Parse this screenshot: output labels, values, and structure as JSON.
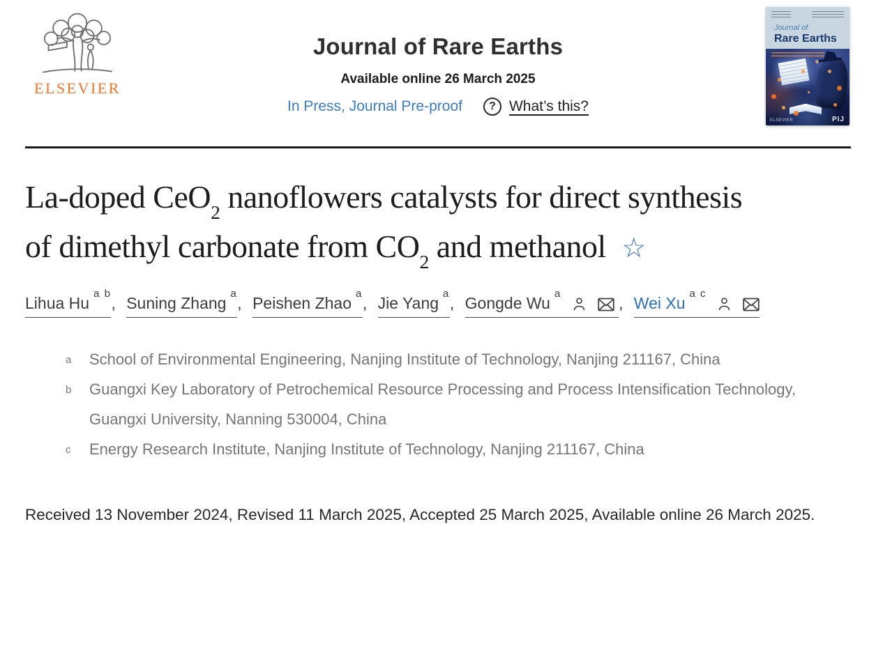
{
  "header": {
    "publisher_name": "ELSEVIER",
    "journal_title": "Journal of Rare Earths",
    "available_online": "Available online 26 March 2025",
    "in_press_link": "In Press, Journal Pre-proof",
    "whats_this": "What’s this?",
    "help_icon_glyph": "?",
    "cover": {
      "line1": "Journal of",
      "line2": "Rare Earths",
      "badge": "PIJ",
      "publisher": "ELSEVIER"
    }
  },
  "article": {
    "title_segments": [
      {
        "text": "La-doped CeO"
      },
      {
        "sub": "2"
      },
      {
        "text": " nanoflowers catalysts for direct synthesis of dimethyl carbonate from CO"
      },
      {
        "sub": "2"
      },
      {
        "text": " and methanol"
      }
    ],
    "title_star": "☆"
  },
  "authors": {
    "separator": ", ",
    "list": [
      {
        "name": "Lihua Hu",
        "sup": "a b",
        "corresponding": false,
        "highlighted": false
      },
      {
        "name": "Suning Zhang",
        "sup": "a",
        "corresponding": false,
        "highlighted": false
      },
      {
        "name": "Peishen Zhao",
        "sup": "a",
        "corresponding": false,
        "highlighted": false
      },
      {
        "name": "Jie Yang",
        "sup": "a",
        "corresponding": false,
        "highlighted": false
      },
      {
        "name": "Gongde Wu",
        "sup": "a",
        "corresponding": true,
        "highlighted": false
      },
      {
        "name": "Wei Xu",
        "sup": "a c",
        "corresponding": true,
        "highlighted": true
      }
    ]
  },
  "affiliations": [
    {
      "label": "a",
      "text": "School of Environmental Engineering, Nanjing Institute of Technology, Nanjing 211167, China"
    },
    {
      "label": "b",
      "text": "Guangxi Key Laboratory of Petrochemical Resource Processing and Process Intensification Technology, Guangxi University, Nanning 530004, China"
    },
    {
      "label": "c",
      "text": "Energy Research Institute, Nanjing Institute of Technology, Nanjing 211167, China"
    }
  ],
  "dates_line": "Received 13 November 2024, Revised 11 March 2025, Accepted 25 March 2025, Available online 26 March 2025.",
  "colors": {
    "link_blue": "#3e7dba",
    "highlighted_author_blue": "#2f6fad",
    "star_blue": "#3b72b0",
    "elsevier_orange": "#e8762d",
    "affiliation_gray": "#757575",
    "title_black": "#1d1d1d",
    "rule_black": "#1a1a1a"
  }
}
